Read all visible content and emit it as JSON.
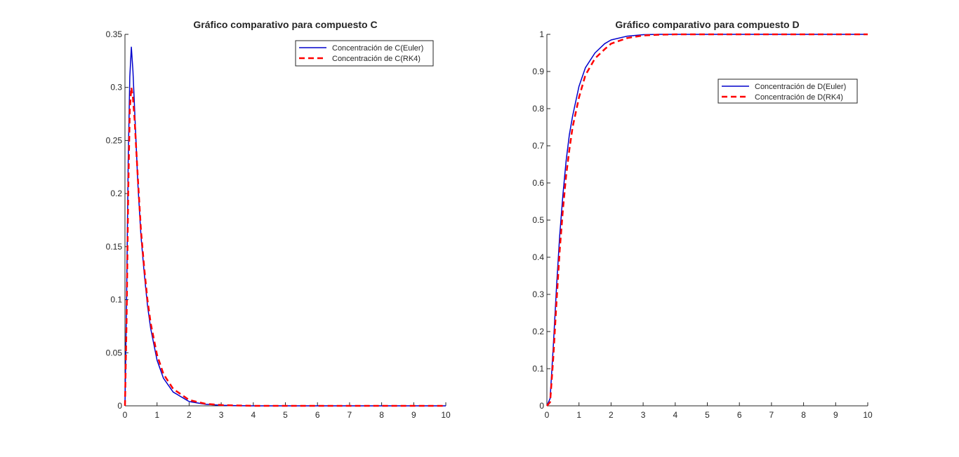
{
  "chart_data": [
    {
      "type": "line",
      "title": "Gráfico comparativo para compuesto C",
      "xlabel": "",
      "ylabel": "",
      "xlim": [
        0,
        10
      ],
      "ylim": [
        0,
        0.35
      ],
      "xticks": [
        0,
        1,
        2,
        3,
        4,
        5,
        6,
        7,
        8,
        9,
        10
      ],
      "yticks": [
        0,
        0.05,
        0.1,
        0.15,
        0.2,
        0.25,
        0.3,
        0.35
      ],
      "ytick_labels": [
        "0",
        "0.05",
        "0.1",
        "0.15",
        "0.2",
        "0.25",
        "0.3",
        "0.35"
      ],
      "grid": false,
      "legend_position": "top-right",
      "series": [
        {
          "name": "Concentración de C(Euler)",
          "color": "#0000cc",
          "style": "solid",
          "x": [
            0,
            0.05,
            0.1,
            0.15,
            0.2,
            0.25,
            0.3,
            0.4,
            0.5,
            0.6,
            0.7,
            0.8,
            1.0,
            1.2,
            1.5,
            2.0,
            2.5,
            3.0,
            3.5,
            4,
            5,
            6,
            7,
            8,
            9,
            10
          ],
          "y": [
            0,
            0.1,
            0.23,
            0.31,
            0.338,
            0.315,
            0.28,
            0.21,
            0.16,
            0.125,
            0.095,
            0.073,
            0.043,
            0.026,
            0.013,
            0.004,
            0.0015,
            0.0005,
            0.0002,
            0,
            0,
            0,
            0,
            0,
            0,
            0
          ]
        },
        {
          "name": "Concentración de C(RK4)",
          "color": "#ff0000",
          "style": "dashed",
          "x": [
            0,
            0.05,
            0.1,
            0.15,
            0.2,
            0.25,
            0.3,
            0.4,
            0.5,
            0.6,
            0.7,
            0.8,
            1.0,
            1.2,
            1.5,
            2.0,
            2.5,
            3.0,
            3.5,
            4,
            5,
            6,
            7,
            8,
            9,
            10
          ],
          "y": [
            0,
            0.08,
            0.2,
            0.28,
            0.3,
            0.29,
            0.27,
            0.215,
            0.165,
            0.13,
            0.1,
            0.078,
            0.048,
            0.03,
            0.016,
            0.0055,
            0.002,
            0.0007,
            0.0003,
            0,
            0,
            0,
            0,
            0,
            0,
            0
          ]
        }
      ]
    },
    {
      "type": "line",
      "title": "Gráfico comparativo para compuesto D",
      "xlabel": "",
      "ylabel": "",
      "xlim": [
        0,
        10
      ],
      "ylim": [
        0,
        1
      ],
      "xticks": [
        0,
        1,
        2,
        3,
        4,
        5,
        6,
        7,
        8,
        9,
        10
      ],
      "yticks": [
        0,
        0.1,
        0.2,
        0.3,
        0.4,
        0.5,
        0.6,
        0.7,
        0.8,
        0.9,
        1
      ],
      "ytick_labels": [
        "0",
        "0.1",
        "0.2",
        "0.3",
        "0.4",
        "0.5",
        "0.6",
        "0.7",
        "0.8",
        "0.9",
        "1"
      ],
      "grid": false,
      "legend_position": "upper-right",
      "series": [
        {
          "name": "Concentración de D(Euler)",
          "color": "#0000cc",
          "style": "solid",
          "x": [
            0,
            0.1,
            0.2,
            0.3,
            0.4,
            0.5,
            0.6,
            0.7,
            0.8,
            1.0,
            1.2,
            1.5,
            1.8,
            2.0,
            2.5,
            3.0,
            3.5,
            4,
            5,
            6,
            7,
            8,
            9,
            10
          ],
          "y": [
            0,
            0.02,
            0.16,
            0.32,
            0.46,
            0.57,
            0.66,
            0.73,
            0.78,
            0.86,
            0.91,
            0.95,
            0.975,
            0.985,
            0.995,
            0.999,
            1,
            1,
            1,
            1,
            1,
            1,
            1,
            1
          ]
        },
        {
          "name": "Concentración de D(RK4)",
          "color": "#ff0000",
          "style": "dashed",
          "x": [
            0,
            0.1,
            0.2,
            0.3,
            0.4,
            0.5,
            0.6,
            0.7,
            0.8,
            1.0,
            1.2,
            1.5,
            1.8,
            2.0,
            2.5,
            3.0,
            3.5,
            4,
            5,
            6,
            7,
            8,
            9,
            10
          ],
          "y": [
            0,
            0.01,
            0.13,
            0.28,
            0.42,
            0.53,
            0.62,
            0.69,
            0.75,
            0.83,
            0.89,
            0.935,
            0.96,
            0.975,
            0.99,
            0.997,
            0.999,
            1,
            1,
            1,
            1,
            1,
            1,
            1
          ]
        }
      ]
    }
  ]
}
